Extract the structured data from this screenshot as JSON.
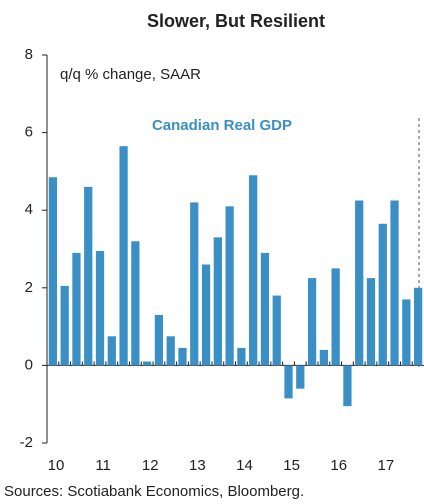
{
  "chart_data": {
    "type": "bar",
    "title": "Slower, But Resilient",
    "subtitle": "q/q % change, SAAR",
    "series_label": "Canadian Real GDP",
    "source": "Sources: Scotiabank Economics, Bloomberg.",
    "categories": [
      "10",
      null,
      null,
      null,
      "11",
      null,
      null,
      null,
      "12",
      null,
      null,
      null,
      "13",
      null,
      null,
      null,
      "14",
      null,
      null,
      null,
      "15",
      null,
      null,
      null,
      "16",
      null,
      null,
      null,
      "17",
      null,
      null,
      null
    ],
    "values": [
      4.85,
      2.05,
      2.9,
      4.6,
      2.95,
      0.75,
      5.65,
      3.2,
      0.1,
      1.3,
      0.75,
      0.45,
      4.2,
      2.6,
      3.3,
      4.1,
      0.45,
      4.9,
      2.9,
      1.8,
      -0.85,
      -0.6,
      2.25,
      0.4,
      2.5,
      -1.05,
      4.25,
      2.25,
      3.65,
      4.25,
      1.7,
      2.0
    ],
    "color": "#3a8fc4",
    "ylim": [
      -2,
      8
    ],
    "yticks": [
      -2,
      0,
      2,
      4,
      6,
      8
    ]
  }
}
